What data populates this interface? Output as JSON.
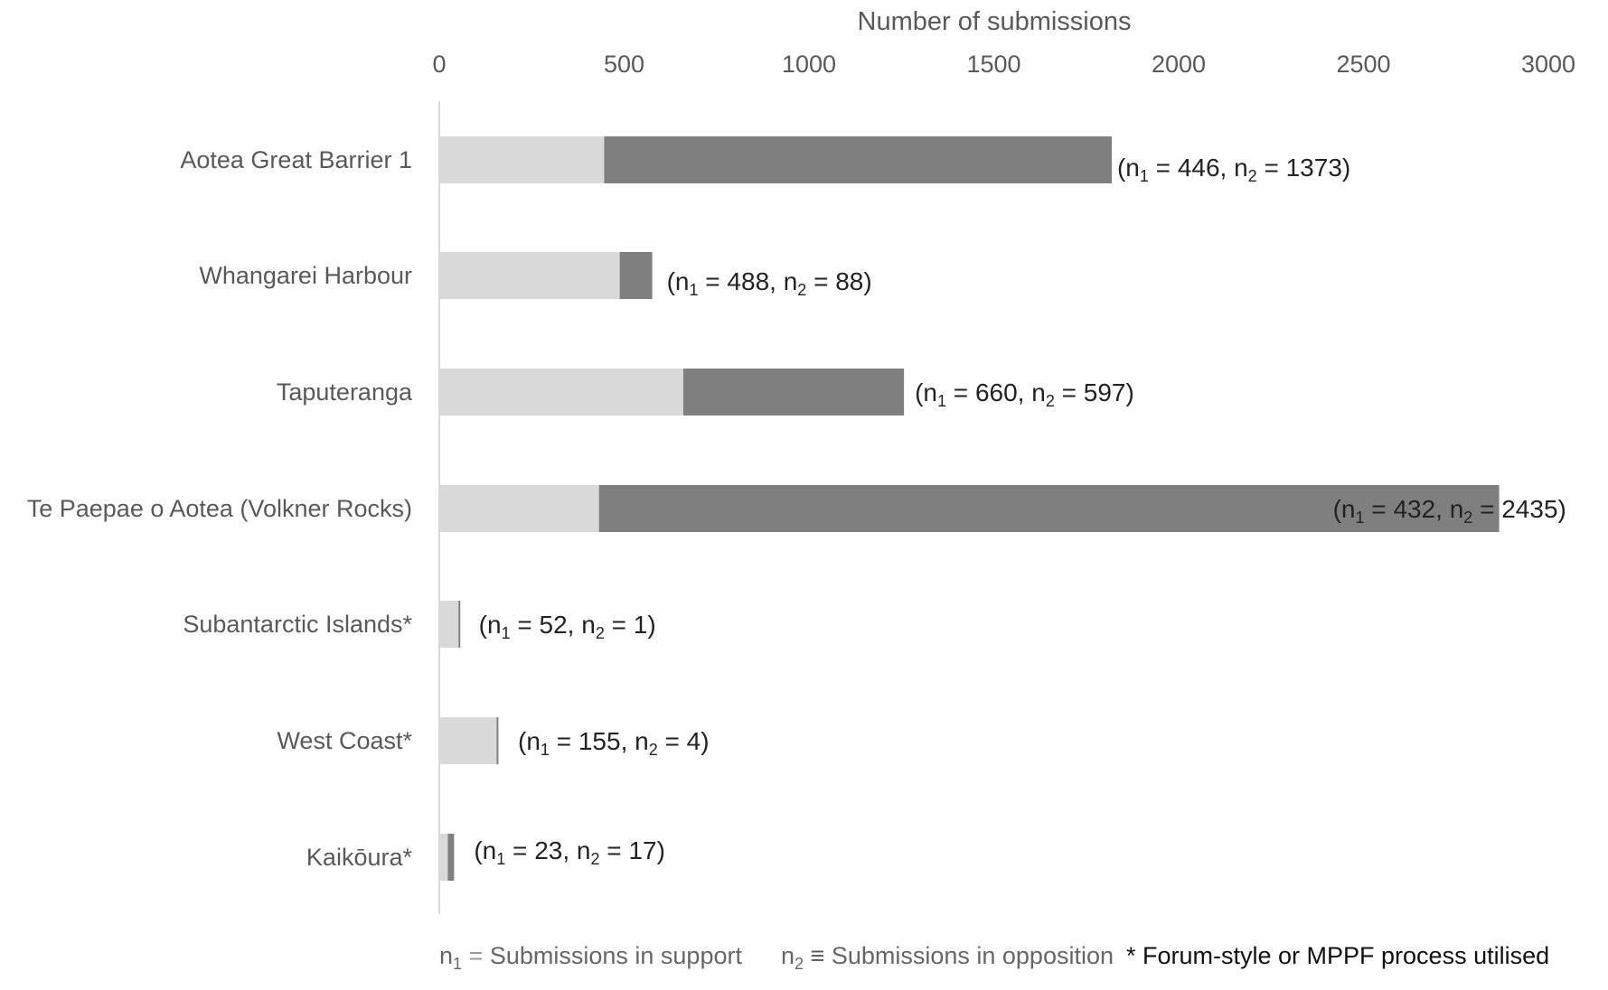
{
  "chart_data": {
    "type": "bar",
    "orientation": "horizontal",
    "stacked": true,
    "xlabel": "Number of submissions",
    "ylabel": "",
    "xlim": [
      0,
      3000
    ],
    "x_ticks": [
      "0",
      "500",
      "1000",
      "1500",
      "2000",
      "2500",
      "3000"
    ],
    "x_axis_position": "top",
    "grid": false,
    "categories": [
      "Aotea Great Barrier 1",
      "Whangarei Harbour",
      "Taputeranga",
      "Te Paepae o Aotea (Volkner Rocks)",
      "Subantarctic Islands*",
      "West Coast*",
      "Kaikōura*"
    ],
    "series": [
      {
        "name": "Submissions in support",
        "symbol": "n1",
        "color": "#d9d9d9",
        "values": [
          446,
          488,
          660,
          432,
          52,
          155,
          23
        ]
      },
      {
        "name": "Submissions in opposition",
        "symbol": "n2",
        "color": "#7f7f7f",
        "values": [
          1373,
          88,
          597,
          2435,
          1,
          4,
          17
        ]
      }
    ],
    "data_labels": [
      {
        "n1": "446",
        "n2": "1373"
      },
      {
        "n1": "488",
        "n2": "88"
      },
      {
        "n1": "660",
        "n2": "597"
      },
      {
        "n1": "432",
        "n2": "2435"
      },
      {
        "n1": "52",
        "n2": "1"
      },
      {
        "n1": "155",
        "n2": "4"
      },
      {
        "n1": "23",
        "n2": "17"
      }
    ],
    "legend": {
      "position": "bottom",
      "items": [
        {
          "symbol": "n",
          "subscript": "1",
          "sep": "=",
          "text": "Submissions in support",
          "color": "#d9d9d9"
        },
        {
          "symbol": "n",
          "subscript": "2",
          "sep": "≡",
          "text": "Submissions in opposition",
          "color": "#7f7f7f"
        }
      ],
      "note": "* Forum-style or MPPF process utilised"
    }
  }
}
